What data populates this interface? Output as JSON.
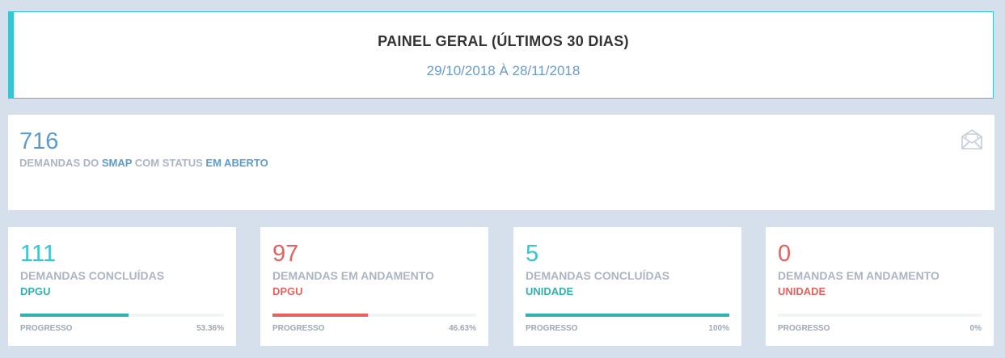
{
  "header": {
    "title": "PAINEL GERAL (ÚLTIMOS 30 DIAS)",
    "period": "29/10/2018 À 28/11/2018"
  },
  "summary": {
    "count": "716",
    "desc_prefix": "DEMANDAS DO ",
    "desc_system": "SMAP",
    "desc_middle": " COM STATUS ",
    "desc_status": "EM ABERTO",
    "icon": "envelope-open-icon"
  },
  "cards": [
    {
      "count": "111",
      "label": "DEMANDAS CONCLUÍDAS",
      "sublabel": "DPGU",
      "progress_label": "PROGRESSO",
      "progress_text": "53.36%",
      "progress_fraction": 0.5336,
      "color": "#32b2ad"
    },
    {
      "count": "97",
      "label": "DEMANDAS EM ANDAMENTO",
      "sublabel": "DPGU",
      "progress_label": "PROGRESSO",
      "progress_text": "46.63%",
      "progress_fraction": 0.4663,
      "color": "#e7625f"
    },
    {
      "count": "5",
      "label": "DEMANDAS CONCLUÍDAS",
      "sublabel": "UNIDADE",
      "progress_label": "PROGRESSO",
      "progress_text": "100%",
      "progress_fraction": 1.0,
      "color": "#32b2ad"
    },
    {
      "count": "0",
      "label": "DEMANDAS EM ANDAMENTO",
      "sublabel": "UNIDADE",
      "progress_label": "PROGRESSO",
      "progress_text": "0%",
      "progress_fraction": 0.0,
      "color": "#e7625f"
    }
  ]
}
